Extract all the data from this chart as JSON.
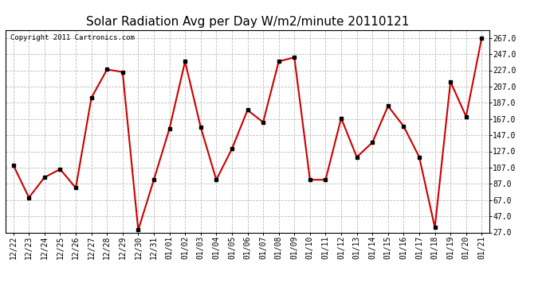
{
  "title": "Solar Radiation Avg per Day W/m2/minute 20110121",
  "copyright": "Copyright 2011 Cartronics.com",
  "labels": [
    "12/22",
    "12/23",
    "12/24",
    "12/25",
    "12/26",
    "12/27",
    "12/28",
    "12/29",
    "12/30",
    "12/31",
    "01/01",
    "01/02",
    "01/03",
    "01/04",
    "01/05",
    "01/06",
    "01/07",
    "01/08",
    "01/09",
    "01/10",
    "01/11",
    "01/12",
    "01/13",
    "01/14",
    "01/15",
    "01/16",
    "01/17",
    "01/18",
    "01/19",
    "01/20",
    "01/21"
  ],
  "values": [
    110,
    70,
    95,
    105,
    82,
    193,
    228,
    225,
    30,
    92,
    155,
    238,
    157,
    92,
    130,
    178,
    163,
    238,
    243,
    92,
    92,
    168,
    120,
    138,
    183,
    158,
    120,
    33,
    213,
    170,
    267
  ],
  "line_color": "#cc0000",
  "marker_color": "#000000",
  "background_color": "#ffffff",
  "plot_bg_color": "#ffffff",
  "grid_color": "#bbbbbb",
  "ylim": [
    27,
    277
  ],
  "yticks": [
    27.0,
    47.0,
    67.0,
    87.0,
    107.0,
    127.0,
    147.0,
    167.0,
    187.0,
    207.0,
    227.0,
    247.0,
    267.0
  ],
  "title_fontsize": 11,
  "tick_fontsize": 7,
  "copyright_fontsize": 6.5,
  "fig_width": 6.9,
  "fig_height": 3.75,
  "dpi": 100
}
